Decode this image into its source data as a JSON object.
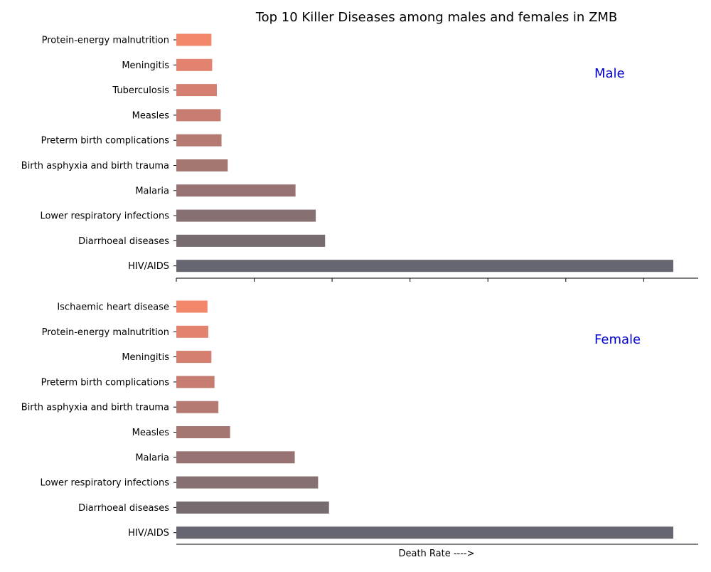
{
  "chart_data": {
    "type": "bar",
    "orientation": "horizontal",
    "title": "Top 10 Killer Diseases among males and females in ZMB",
    "xlabel": "Death Rate ---->",
    "grid": false,
    "x_tick_labels_shown": false,
    "xlim": [
      0,
      670
    ],
    "panels": [
      {
        "label": "Male",
        "categories": [
          "Protein-energy malnutrition",
          "Meningitis",
          "Tuberculosis",
          "Measles",
          "Preterm birth complications",
          "Birth asphyxia and birth trauma",
          "Malaria",
          "Lower respiratory infections",
          "Diarrhoeal diseases",
          "HIV/AIDS"
        ],
        "values": [
          45,
          46,
          52,
          57,
          58,
          66,
          153,
          179,
          191,
          638
        ]
      },
      {
        "label": "Female",
        "categories": [
          "Ischaemic heart disease",
          "Protein-energy malnutrition",
          "Meningitis",
          "Preterm birth complications",
          "Birth asphyxia and birth trauma",
          "Measles",
          "Malaria",
          "Lower respiratory infections",
          "Diarrhoeal diseases",
          "HIV/AIDS"
        ],
        "values": [
          40,
          41,
          45,
          49,
          54,
          69,
          152,
          182,
          196,
          638
        ]
      }
    ],
    "colors": [
      "#f2876b",
      "#e3836f",
      "#d57f70",
      "#c67c70",
      "#b57a71",
      "#a67671",
      "#967372",
      "#867072",
      "#766c70",
      "#666670"
    ],
    "label_color": "#0000cc"
  }
}
